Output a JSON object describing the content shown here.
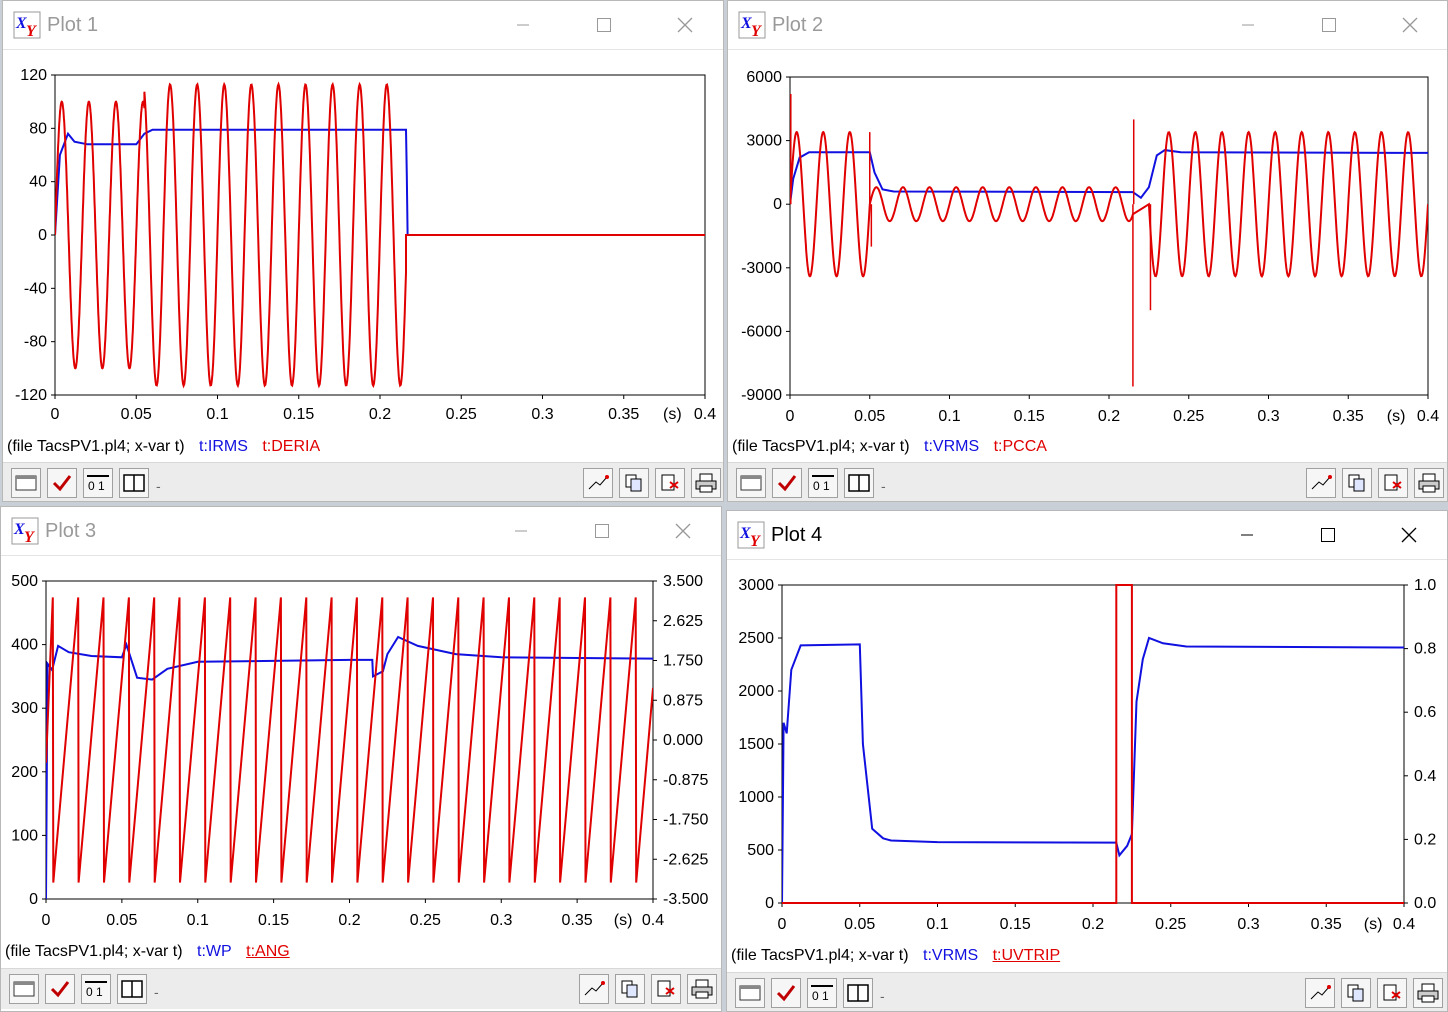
{
  "windows": [
    {
      "id": "plot1",
      "title": "Plot 1",
      "chart_data": {
        "type": "line",
        "x_range": [
          0,
          0.4
        ],
        "x_ticks": [
          "0",
          "0.05",
          "0.1",
          "0.15",
          "0.2",
          "0.25",
          "0.3",
          "0.35",
          "0.4"
        ],
        "x_unit": "(s)",
        "y_left_range": [
          -120,
          120
        ],
        "y_left_ticks": [
          "120",
          "80",
          "40",
          "0",
          "-40",
          "-80",
          "-120"
        ],
        "series": [
          {
            "name": "t:IRMS",
            "color": "#1010e0",
            "shape": "rms_step",
            "points": [
              [
                0,
                0
              ],
              [
                0.003,
                60
              ],
              [
                0.008,
                76
              ],
              [
                0.012,
                70
              ],
              [
                0.02,
                68
              ],
              [
                0.05,
                68
              ],
              [
                0.055,
                76
              ],
              [
                0.06,
                79
              ],
              [
                0.216,
                79
              ],
              [
                0.2165,
                45
              ],
              [
                0.217,
                0
              ],
              [
                0.4,
                0
              ]
            ]
          },
          {
            "name": "t:DERIA",
            "color": "#e00000",
            "shape": "sine",
            "segments": [
              {
                "t0": 0,
                "t1": 0.055,
                "amp": 100,
                "freq": 60
              },
              {
                "t0": 0.055,
                "t1": 0.216,
                "amp": 113,
                "freq": 60
              }
            ],
            "after": {
              "t": 0.216,
              "value": 0
            }
          }
        ]
      },
      "status": {
        "file": "(file TacsPV1.pl4; x-var t)",
        "var1": "t:IRMS",
        "var2": "t:DERIA"
      }
    },
    {
      "id": "plot2",
      "title": "Plot 2",
      "chart_data": {
        "type": "line",
        "x_range": [
          0,
          0.4
        ],
        "x_ticks": [
          "0",
          "0.05",
          "0.1",
          "0.15",
          "0.2",
          "0.25",
          "0.3",
          "0.35",
          "0.4"
        ],
        "x_unit": "(s)",
        "y_left_range": [
          -9000,
          6000
        ],
        "y_left_ticks": [
          "6000",
          "3000",
          "0",
          "-3000",
          "-6000",
          "-9000"
        ],
        "series": [
          {
            "name": "t:VRMS",
            "color": "#1010e0",
            "shape": "rms_step",
            "points": [
              [
                0,
                0
              ],
              [
                0.002,
                1200
              ],
              [
                0.006,
                2200
              ],
              [
                0.012,
                2450
              ],
              [
                0.05,
                2450
              ],
              [
                0.053,
                1500
              ],
              [
                0.058,
                700
              ],
              [
                0.065,
                600
              ],
              [
                0.215,
                570
              ],
              [
                0.22,
                300
              ],
              [
                0.225,
                800
              ],
              [
                0.23,
                2300
              ],
              [
                0.235,
                2550
              ],
              [
                0.245,
                2450
              ],
              [
                0.4,
                2420
              ]
            ]
          },
          {
            "name": "t:PCCA",
            "color": "#e00000",
            "shape": "sine",
            "segments": [
              {
                "t0": 0,
                "t1": 0.05,
                "amp": 3400,
                "freq": 60
              },
              {
                "t0": 0.05,
                "t1": 0.215,
                "amp": 800,
                "freq": 60
              },
              {
                "t0": 0.225,
                "t1": 0.4,
                "amp": 3400,
                "freq": 60
              }
            ],
            "spikes": [
              [
                0.0005,
                5200
              ],
              [
                0.05,
                3400
              ],
              [
                0.051,
                -2000
              ],
              [
                0.215,
                -8600
              ],
              [
                0.2155,
                4000
              ],
              [
                0.226,
                -5000
              ]
            ]
          }
        ]
      },
      "status": {
        "file": "(file TacsPV1.pl4; x-var t)",
        "var1": "t:VRMS",
        "var2": "t:PCCA"
      }
    },
    {
      "id": "plot3",
      "title": "Plot 3",
      "chart_data": {
        "type": "line",
        "x_range": [
          0,
          0.4
        ],
        "x_ticks": [
          "0",
          "0.05",
          "0.1",
          "0.15",
          "0.2",
          "0.25",
          "0.3",
          "0.35",
          "0.4"
        ],
        "x_unit": "(s)",
        "y_left_range": [
          0,
          500
        ],
        "y_left_ticks": [
          "500",
          "400",
          "300",
          "200",
          "100",
          "0"
        ],
        "y_right_range": [
          -3.5,
          3.5
        ],
        "y_right_ticks": [
          "3.500",
          "2.625",
          "1.750",
          "0.875",
          "0.000",
          "-0.875",
          "-1.750",
          "-2.625",
          "-3.500"
        ],
        "series": [
          {
            "name": "t:WP",
            "color": "#1010e0",
            "shape": "rms_step",
            "points": [
              [
                0,
                0
              ],
              [
                0.001,
                370
              ],
              [
                0.004,
                360
              ],
              [
                0.008,
                398
              ],
              [
                0.015,
                388
              ],
              [
                0.03,
                382
              ],
              [
                0.05,
                380
              ],
              [
                0.053,
                400
              ],
              [
                0.055,
                385
              ],
              [
                0.06,
                348
              ],
              [
                0.07,
                345
              ],
              [
                0.08,
                362
              ],
              [
                0.1,
                373
              ],
              [
                0.2,
                376
              ],
              [
                0.215,
                376
              ],
              [
                0.2155,
                350
              ],
              [
                0.222,
                358
              ],
              [
                0.225,
                385
              ],
              [
                0.232,
                412
              ],
              [
                0.245,
                398
              ],
              [
                0.27,
                385
              ],
              [
                0.3,
                380
              ],
              [
                0.4,
                378
              ]
            ]
          },
          {
            "name": "t:ANG",
            "color": "#e00000",
            "shape": "sawtooth",
            "axis": "right",
            "period": 0.0167,
            "min": -3.14,
            "max": 3.14
          }
        ]
      },
      "status": {
        "file": "(file TacsPV1.pl4; x-var t)",
        "var1": "t:WP",
        "var2": "t:ANG"
      }
    },
    {
      "id": "plot4",
      "title": "Plot 4",
      "chart_data": {
        "type": "line",
        "x_range": [
          0,
          0.4
        ],
        "x_ticks": [
          "0",
          "0.05",
          "0.1",
          "0.15",
          "0.2",
          "0.25",
          "0.3",
          "0.35",
          "0.4"
        ],
        "x_unit": "(s)",
        "y_left_range": [
          0,
          3000
        ],
        "y_left_ticks": [
          "3000",
          "2500",
          "2000",
          "1500",
          "1000",
          "500",
          "0"
        ],
        "y_right_range": [
          0,
          1
        ],
        "y_right_ticks": [
          "1.0",
          "0.8",
          "0.6",
          "0.4",
          "0.2",
          "0.0"
        ],
        "series": [
          {
            "name": "t:VRMS",
            "color": "#1010e0",
            "shape": "rms_step",
            "points": [
              [
                0,
                0
              ],
              [
                0.001,
                1700
              ],
              [
                0.003,
                1600
              ],
              [
                0.006,
                2200
              ],
              [
                0.012,
                2430
              ],
              [
                0.05,
                2440
              ],
              [
                0.052,
                1500
              ],
              [
                0.058,
                700
              ],
              [
                0.065,
                610
              ],
              [
                0.07,
                590
              ],
              [
                0.1,
                575
              ],
              [
                0.215,
                570
              ],
              [
                0.217,
                450
              ],
              [
                0.222,
                540
              ],
              [
                0.225,
                650
              ],
              [
                0.228,
                1900
              ],
              [
                0.232,
                2300
              ],
              [
                0.236,
                2500
              ],
              [
                0.245,
                2450
              ],
              [
                0.26,
                2420
              ],
              [
                0.4,
                2410
              ]
            ]
          },
          {
            "name": "t:UVTRIP",
            "color": "#e00000",
            "shape": "rms_step",
            "axis": "right",
            "points": [
              [
                0,
                0
              ],
              [
                0.215,
                0
              ],
              [
                0.215,
                1
              ],
              [
                0.225,
                1
              ],
              [
                0.225,
                0
              ],
              [
                0.4,
                0
              ]
            ]
          }
        ]
      },
      "status": {
        "file": "(file TacsPV1.pl4; x-var t)",
        "var1": "t:VRMS",
        "var2": "t:UVTRIP"
      }
    }
  ]
}
